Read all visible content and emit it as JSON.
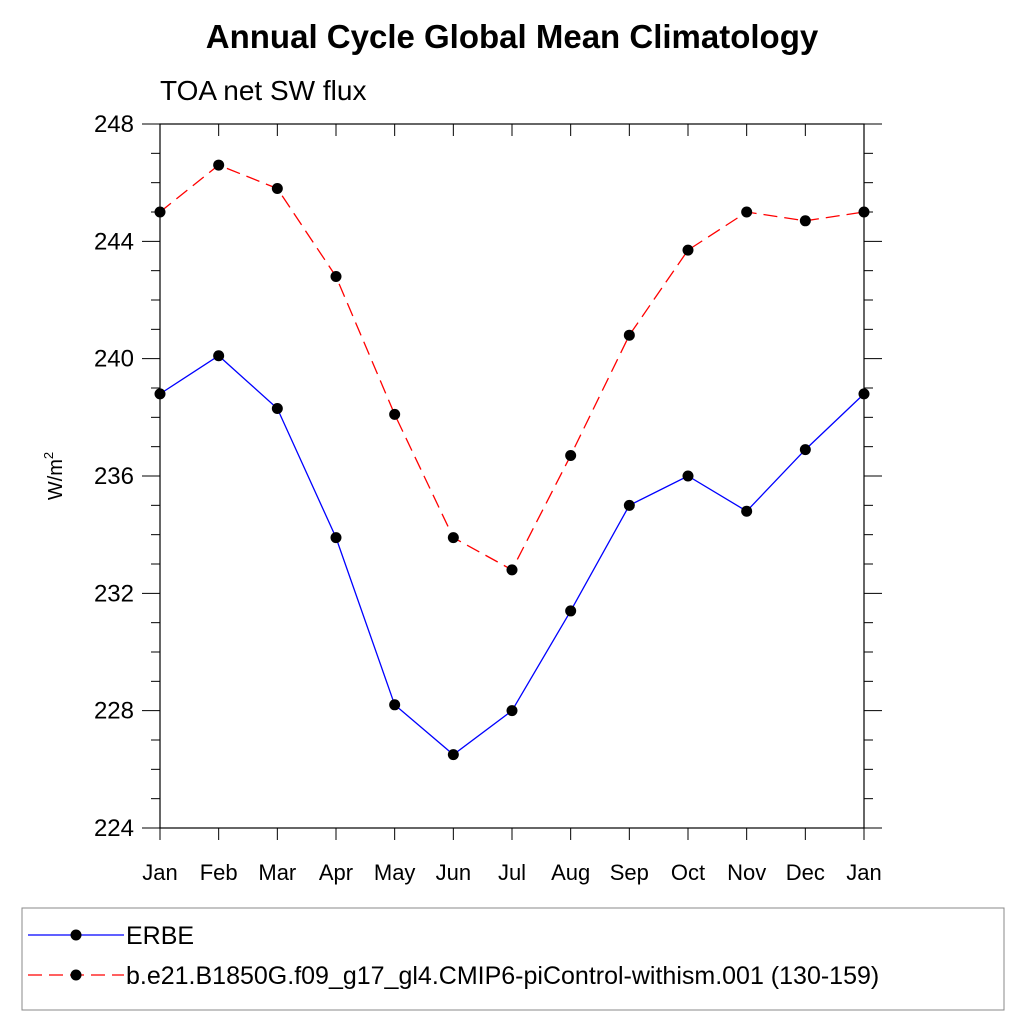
{
  "chart_data": {
    "type": "line",
    "title": "Annual Cycle Global Mean Climatology",
    "subtitle": "TOA net SW flux",
    "ylabel": "W/m",
    "ylabel_superscript": "2",
    "xlabel": "",
    "categories": [
      "Jan",
      "Feb",
      "Mar",
      "Apr",
      "May",
      "Jun",
      "Jul",
      "Aug",
      "Sep",
      "Oct",
      "Nov",
      "Dec",
      "Jan"
    ],
    "ylim": [
      224,
      248
    ],
    "yticks": [
      "224",
      "228",
      "232",
      "236",
      "240",
      "244",
      "248"
    ],
    "grid": false,
    "legend_position": "bottom",
    "series": [
      {
        "name": "ERBE",
        "color": "#0000ff",
        "line_style": "solid",
        "marker": "filled-circle",
        "values": [
          238.8,
          240.1,
          238.3,
          233.9,
          228.2,
          226.5,
          228.0,
          231.4,
          235.0,
          236.0,
          234.8,
          236.9,
          238.8
        ]
      },
      {
        "name": "b.e21.B1850G.f09_g17_gl4.CMIP6-piControl-withism.001 (130-159)",
        "color": "#ff0000",
        "line_style": "dashed",
        "marker": "filled-circle",
        "values": [
          245.0,
          246.6,
          245.8,
          242.8,
          238.1,
          233.9,
          232.8,
          236.7,
          240.8,
          243.7,
          245.0,
          244.7,
          245.0
        ]
      }
    ]
  }
}
